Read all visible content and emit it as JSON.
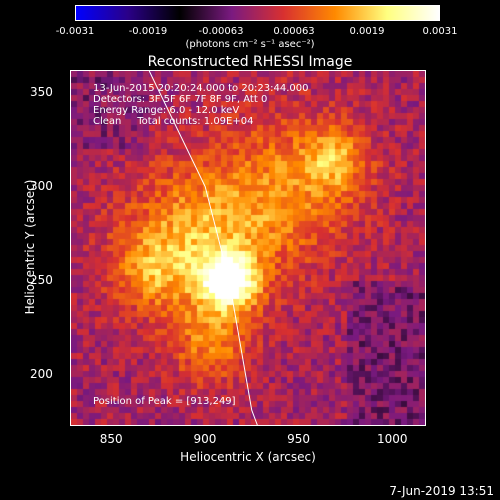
{
  "colorbar": {
    "ticks": [
      "-0.0031",
      "-0.0019",
      "-0.00063",
      "0.00063",
      "0.0019",
      "0.0031"
    ],
    "units": "(photons cm⁻² s⁻¹ asec⁻²)"
  },
  "annotations": {
    "line1": "13-Jun-2015 20:20:24.000 to 20:23:44.000",
    "line2": "Detectors: 3F 5F 6F 7F 8F 9F, Att 0",
    "line3": "Energy Range: 6.0 - 12.0 keV",
    "line4": "Clean     Total counts: 1.09E+04",
    "peak": "Position of Peak = [913,249]"
  },
  "footer": {
    "timestamp": "7-Jun-2019 13:51"
  },
  "chart_data": {
    "type": "heatmap",
    "title": "Reconstructed RHESSI Image",
    "xlabel": "Heliocentric X (arcsec)",
    "ylabel": "Heliocentric Y (arcsec)",
    "xlim": [
      828,
      1018
    ],
    "ylim": [
      172,
      362
    ],
    "xticks": [
      "850",
      "900",
      "950",
      "1000"
    ],
    "yticks": [
      "200",
      "250",
      "300",
      "350"
    ],
    "zlim": [
      -0.0031,
      0.0031
    ],
    "colormap": [
      "#0000ff",
      "#2a0088",
      "#000000",
      "#7a1a80",
      "#d83030",
      "#ff8a00",
      "#ffff80",
      "#ffffff"
    ],
    "peak": {
      "x": 913,
      "y": 249
    },
    "limb_curve": [
      [
        870,
        362
      ],
      [
        900,
        300
      ],
      [
        913,
        249
      ],
      [
        925,
        180
      ],
      [
        928,
        172
      ]
    ],
    "sources": [
      {
        "x": 913,
        "y": 249,
        "sigma": 10,
        "amp": 0.0031
      },
      {
        "x": 895,
        "y": 270,
        "sigma": 28,
        "amp": 0.0016
      },
      {
        "x": 945,
        "y": 300,
        "sigma": 28,
        "amp": 0.0012
      },
      {
        "x": 970,
        "y": 315,
        "sigma": 12,
        "amp": 0.0012
      },
      {
        "x": 903,
        "y": 215,
        "sigma": 15,
        "amp": 0.0011
      },
      {
        "x": 870,
        "y": 255,
        "sigma": 14,
        "amp": 0.0009
      }
    ]
  }
}
